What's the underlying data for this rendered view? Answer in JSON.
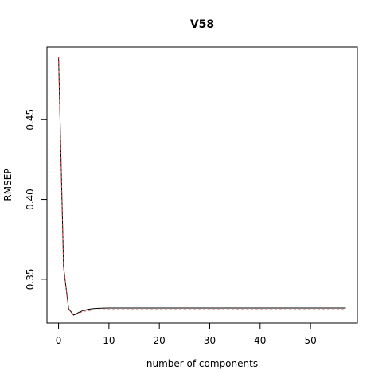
{
  "chart_data": {
    "type": "line",
    "title": "V58",
    "xlabel": "number of components",
    "ylabel": "RMSEP",
    "xlim": [
      -2.3,
      59.3
    ],
    "ylim": [
      0.3225,
      0.4955
    ],
    "xticks": [
      0,
      10,
      20,
      30,
      40,
      50
    ],
    "yticks": [
      0.35,
      0.4,
      0.45
    ],
    "ytick_labels": [
      "0.35",
      "0.40",
      "0.45"
    ],
    "grid": false,
    "legend": "none",
    "x": [
      0,
      1,
      2,
      3,
      4,
      5,
      6,
      7,
      8,
      9,
      10,
      11,
      12,
      13,
      14,
      15,
      16,
      17,
      18,
      19,
      20,
      21,
      22,
      23,
      24,
      25,
      26,
      27,
      28,
      29,
      30,
      31,
      32,
      33,
      34,
      35,
      36,
      37,
      38,
      39,
      40,
      41,
      42,
      43,
      44,
      45,
      46,
      47,
      48,
      49,
      50,
      51,
      52,
      53,
      54,
      55,
      56,
      57
    ],
    "series": [
      {
        "color": "#000000",
        "line_style": "solid",
        "values": [
          0.4895,
          0.3575,
          0.3315,
          0.3275,
          0.3292,
          0.3305,
          0.3312,
          0.3316,
          0.3318,
          0.3319,
          0.332,
          0.332,
          0.332,
          0.332,
          0.332,
          0.332,
          0.332,
          0.332,
          0.332,
          0.332,
          0.332,
          0.332,
          0.332,
          0.332,
          0.332,
          0.332,
          0.332,
          0.332,
          0.332,
          0.332,
          0.332,
          0.332,
          0.332,
          0.332,
          0.332,
          0.332,
          0.332,
          0.332,
          0.332,
          0.332,
          0.332,
          0.332,
          0.332,
          0.332,
          0.332,
          0.332,
          0.332,
          0.332,
          0.332,
          0.332,
          0.332,
          0.332,
          0.332,
          0.332,
          0.332,
          0.332,
          0.332,
          0.332
        ]
      },
      {
        "color": "#dd3333",
        "line_style": "dashed",
        "values": [
          0.4895,
          0.3572,
          0.3312,
          0.3272,
          0.3288,
          0.3299,
          0.3304,
          0.3307,
          0.3308,
          0.3309,
          0.3309,
          0.3309,
          0.3309,
          0.3309,
          0.3309,
          0.3309,
          0.3309,
          0.3309,
          0.3309,
          0.3309,
          0.3309,
          0.3309,
          0.3309,
          0.3309,
          0.3309,
          0.3309,
          0.3309,
          0.3309,
          0.3309,
          0.3309,
          0.3309,
          0.3309,
          0.3309,
          0.3309,
          0.3309,
          0.3309,
          0.3309,
          0.3309,
          0.3309,
          0.3309,
          0.3309,
          0.3309,
          0.3309,
          0.3309,
          0.3309,
          0.3309,
          0.3309,
          0.3309,
          0.3309,
          0.3309,
          0.3309,
          0.3309,
          0.3309,
          0.3309,
          0.3309,
          0.3309,
          0.3309,
          0.3309
        ]
      }
    ]
  }
}
